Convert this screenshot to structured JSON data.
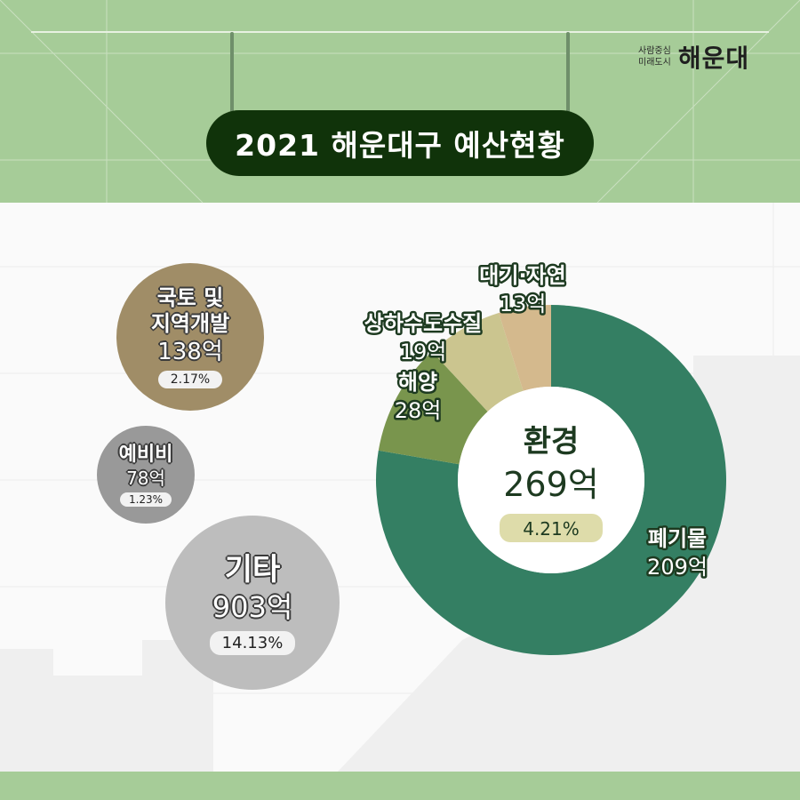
{
  "header": {
    "title": "2021 해운대구 예산현황",
    "logo_sub_line1": "사람중심",
    "logo_sub_line2": "미래도시",
    "logo_main": "해운대"
  },
  "bubbles": [
    {
      "name_line1": "국토 및",
      "name_line2": "지역개발",
      "amount": "138억",
      "percent": "2.17%",
      "color": "#a08d67"
    },
    {
      "name_line1": "예비비",
      "name_line2": "",
      "amount": "78억",
      "percent": "1.23%",
      "color": "#999999"
    },
    {
      "name_line1": "기타",
      "name_line2": "",
      "amount": "903억",
      "percent": "14.13%",
      "color": "#bdbdbd"
    }
  ],
  "center": {
    "label": "환경",
    "amount": "269억",
    "percent": "4.21%"
  },
  "chart_data": {
    "type": "pie",
    "title": "",
    "categories": [
      "폐기물",
      "해양",
      "상하수도수질",
      "대기·자연"
    ],
    "values": [
      209,
      28,
      19,
      13
    ],
    "unit": "억",
    "colors": [
      "#347f63",
      "#79954d",
      "#cbc58f",
      "#d4b98d"
    ],
    "labels": [
      "폐기물 209억",
      "해양 28억",
      "상하수도수질 19억",
      "대기·자연 13억"
    ]
  },
  "colors": {
    "band": "#a6cc98",
    "title_bg": "#10330a",
    "pct_badge": "#dedcaa"
  }
}
